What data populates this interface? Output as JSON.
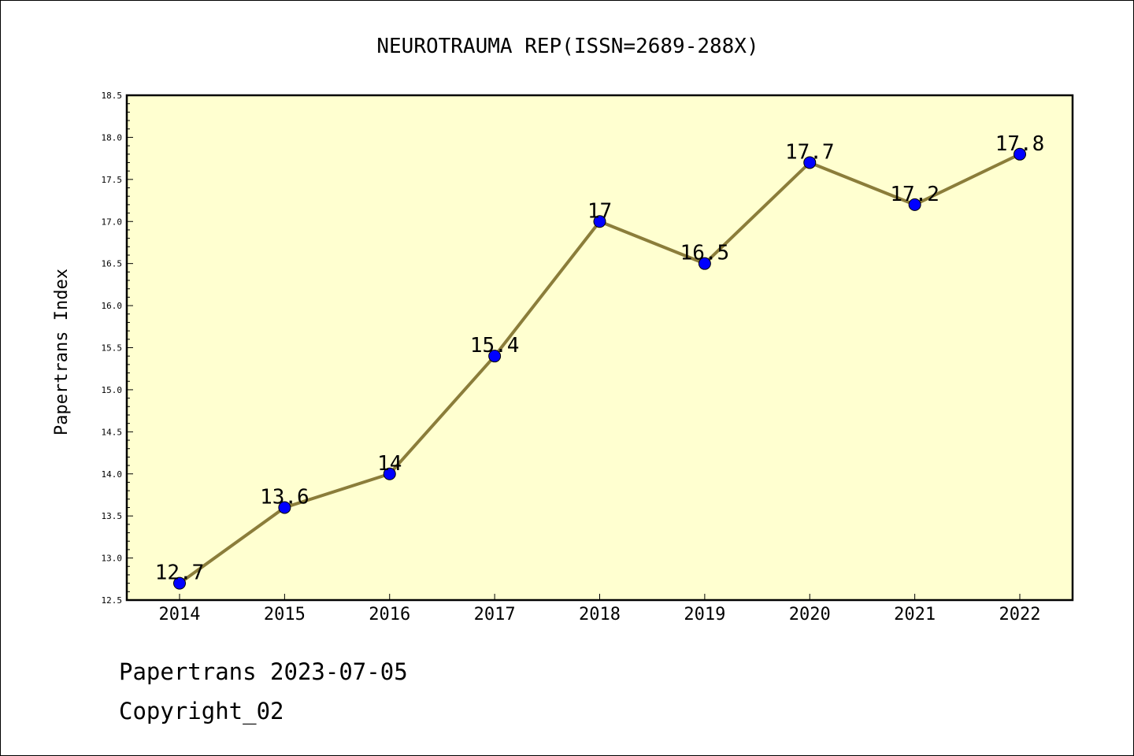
{
  "chart_data": {
    "type": "line",
    "title": "NEUROTRAUMA REP(ISSN=2689-288X)",
    "xlabel": "",
    "ylabel": "Papertrans Index",
    "categories": [
      "2014",
      "2015",
      "2016",
      "2017",
      "2018",
      "2019",
      "2020",
      "2021",
      "2022"
    ],
    "values": [
      12.7,
      13.6,
      14.0,
      15.4,
      17.0,
      16.5,
      17.7,
      17.2,
      17.8
    ],
    "data_labels": [
      "12.7",
      "13.6",
      "14",
      "15.4",
      "17",
      "16.5",
      "17.7",
      "17.2",
      "17.8"
    ],
    "ylim": [
      12.5,
      18.5
    ],
    "yticks": [
      "12.5",
      "13.0",
      "13.5",
      "14.0",
      "14.5",
      "15.0",
      "15.5",
      "16.0",
      "16.5",
      "17.0",
      "17.5",
      "18.0",
      "18.5"
    ],
    "grid": false,
    "colors": {
      "plot_background": "#ffffd0",
      "line": "#8b7d3a",
      "marker": "#0000ff"
    }
  },
  "footer": {
    "line1": "Papertrans 2023-07-05",
    "line2": "Copyright_02"
  }
}
